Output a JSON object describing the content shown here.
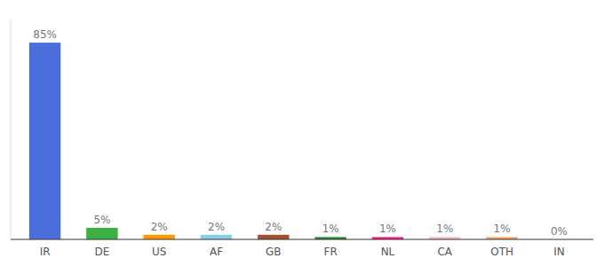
{
  "chart_data": {
    "type": "bar",
    "categories": [
      "IR",
      "DE",
      "US",
      "AF",
      "GB",
      "FR",
      "NL",
      "CA",
      "OTH",
      "IN"
    ],
    "values": [
      85,
      5,
      2,
      2,
      2,
      1,
      1,
      1,
      1,
      0
    ],
    "value_labels": [
      "85%",
      "5%",
      "2%",
      "2%",
      "2%",
      "1%",
      "1%",
      "1%",
      "1%",
      "0%"
    ],
    "colors": [
      "#4a6edb",
      "#3cb043",
      "#ff9900",
      "#87ceeb",
      "#a0522d",
      "#228B22",
      "#ff1493",
      "#ffb6c1",
      "#f4a460",
      "#cccccc"
    ],
    "ylim": [
      0,
      95
    ],
    "data_labels": true,
    "tick_labels": "x",
    "grid": false
  }
}
